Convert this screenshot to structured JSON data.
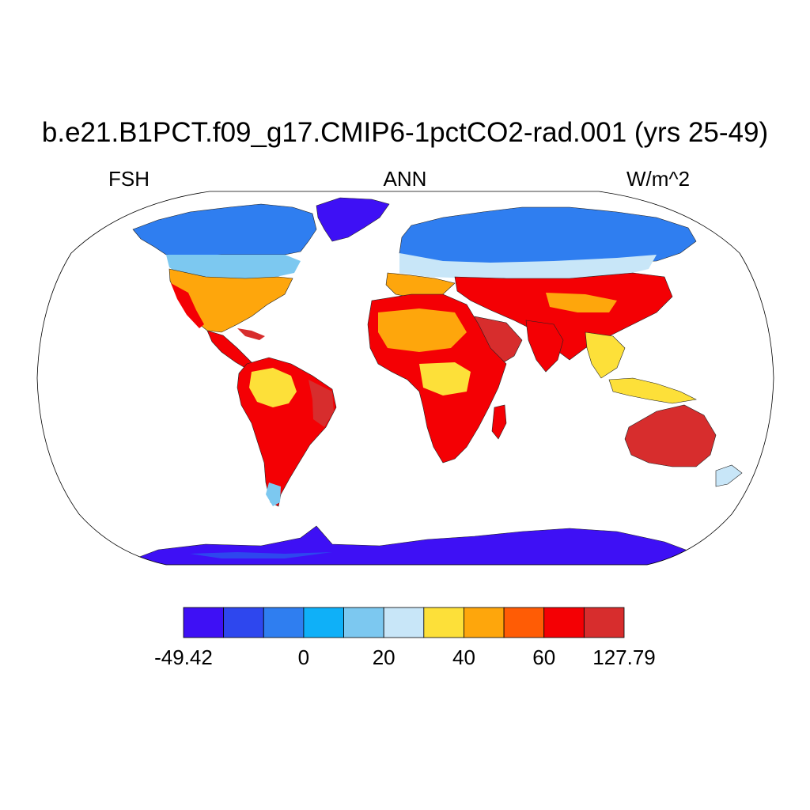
{
  "title": "b.e21.B1PCT.f09_g17.CMIP6-1pctCO2-rad.001 (yrs 25-49)",
  "variable": "FSH",
  "season": "ANN",
  "units": "W/m^2",
  "projection": "Robinson (global, land-only field)",
  "colorbar": {
    "colors": [
      "#3e10f5",
      "#2e47ee",
      "#2f7ef0",
      "#0fb0f8",
      "#7cc8f0",
      "#c8e6f8",
      "#fde039",
      "#fea60c",
      "#ff5c05",
      "#f40004",
      "#d72d2d"
    ],
    "labels": [
      {
        "text": "-49.42",
        "boundary": 0
      },
      {
        "text": "0",
        "boundary": 3
      },
      {
        "text": "20",
        "boundary": 5
      },
      {
        "text": "40",
        "boundary": 7
      },
      {
        "text": "60",
        "boundary": 9
      },
      {
        "text": "127.79",
        "boundary": 11
      }
    ],
    "min": -49.42,
    "max": 127.79
  }
}
